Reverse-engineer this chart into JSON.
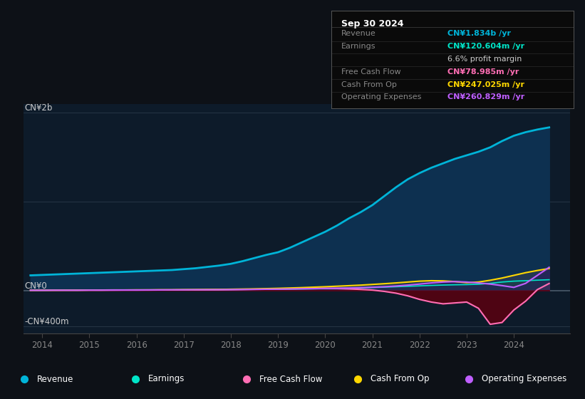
{
  "bg_color": "#0d1117",
  "plot_bg_color": "#0d1b2a",
  "title_date": "Sep 30 2024",
  "years": [
    2013.75,
    2014.0,
    2014.25,
    2014.5,
    2014.75,
    2015.0,
    2015.25,
    2015.5,
    2015.75,
    2016.0,
    2016.25,
    2016.5,
    2016.75,
    2017.0,
    2017.25,
    2017.5,
    2017.75,
    2018.0,
    2018.25,
    2018.5,
    2018.75,
    2019.0,
    2019.25,
    2019.5,
    2019.75,
    2020.0,
    2020.25,
    2020.5,
    2020.75,
    2021.0,
    2021.25,
    2021.5,
    2021.75,
    2022.0,
    2022.25,
    2022.5,
    2022.75,
    2023.0,
    2023.25,
    2023.5,
    2023.75,
    2024.0,
    2024.25,
    2024.5,
    2024.75
  ],
  "revenue_m": [
    170,
    175,
    180,
    185,
    190,
    195,
    200,
    205,
    210,
    215,
    220,
    225,
    230,
    240,
    250,
    265,
    280,
    300,
    330,
    365,
    400,
    430,
    480,
    540,
    600,
    660,
    730,
    810,
    880,
    960,
    1060,
    1160,
    1250,
    1320,
    1380,
    1430,
    1480,
    1520,
    1560,
    1610,
    1680,
    1740,
    1780,
    1810,
    1834
  ],
  "earnings_m": [
    3,
    3,
    4,
    4,
    4,
    5,
    5,
    5,
    6,
    6,
    6,
    7,
    7,
    8,
    8,
    9,
    9,
    10,
    11,
    12,
    13,
    14,
    15,
    17,
    19,
    21,
    23,
    26,
    29,
    33,
    37,
    42,
    47,
    52,
    57,
    61,
    64,
    66,
    70,
    80,
    95,
    105,
    110,
    116,
    121
  ],
  "fcf_m": [
    2,
    2,
    3,
    3,
    3,
    4,
    4,
    4,
    5,
    5,
    5,
    6,
    6,
    7,
    7,
    8,
    9,
    10,
    12,
    14,
    16,
    18,
    20,
    22,
    24,
    25,
    22,
    18,
    12,
    5,
    -10,
    -30,
    -60,
    -100,
    -130,
    -150,
    -140,
    -130,
    -200,
    -380,
    -360,
    -220,
    -120,
    10,
    79
  ],
  "cfo_m": [
    2,
    3,
    3,
    4,
    4,
    5,
    5,
    6,
    6,
    7,
    7,
    8,
    8,
    9,
    10,
    11,
    12,
    14,
    16,
    18,
    21,
    24,
    28,
    32,
    37,
    42,
    48,
    54,
    60,
    68,
    76,
    85,
    95,
    105,
    110,
    108,
    100,
    88,
    95,
    115,
    140,
    170,
    200,
    225,
    247
  ],
  "opex_m": [
    2,
    2,
    3,
    3,
    3,
    4,
    4,
    5,
    5,
    5,
    6,
    6,
    7,
    7,
    8,
    8,
    9,
    10,
    11,
    12,
    14,
    15,
    17,
    19,
    21,
    23,
    26,
    28,
    32,
    36,
    42,
    50,
    60,
    72,
    85,
    95,
    100,
    95,
    85,
    72,
    55,
    35,
    80,
    170,
    261
  ],
  "colors": {
    "revenue_line": "#00b4d8",
    "revenue_fill": "#0d3050",
    "earnings_line": "#00e5c8",
    "earnings_fill": "#004040",
    "fcf_line": "#ff6eb4",
    "fcf_neg_fill": "#5a0010",
    "cfo_line": "#ffd700",
    "opex_line": "#bf5fff",
    "opex_pos_fill": "#3a2060",
    "gray_fill": "#3a4055"
  },
  "xticks": [
    2014,
    2015,
    2016,
    2017,
    2018,
    2019,
    2020,
    2021,
    2022,
    2023,
    2024
  ],
  "legend": [
    {
      "label": "Revenue",
      "color": "#00b4d8"
    },
    {
      "label": "Earnings",
      "color": "#00e5c8"
    },
    {
      "label": "Free Cash Flow",
      "color": "#ff6eb4"
    },
    {
      "label": "Cash From Op",
      "color": "#ffd700"
    },
    {
      "label": "Operating Expenses",
      "color": "#bf5fff"
    }
  ],
  "info_rows": [
    {
      "label": "Revenue",
      "value": "CN¥1.834b /yr",
      "label_color": "#888888",
      "value_color": "#00b4d8"
    },
    {
      "label": "Earnings",
      "value": "CN¥120.604m /yr",
      "label_color": "#888888",
      "value_color": "#00e5c8"
    },
    {
      "label": "",
      "value": "6.6% profit margin",
      "label_color": "#888888",
      "value_color": "#cccccc"
    },
    {
      "label": "Free Cash Flow",
      "value": "CN¥78.985m /yr",
      "label_color": "#888888",
      "value_color": "#ff6eb4"
    },
    {
      "label": "Cash From Op",
      "value": "CN¥247.025m /yr",
      "label_color": "#888888",
      "value_color": "#ffd700"
    },
    {
      "label": "Operating Expenses",
      "value": "CN¥260.829m /yr",
      "label_color": "#888888",
      "value_color": "#bf5fff"
    }
  ]
}
